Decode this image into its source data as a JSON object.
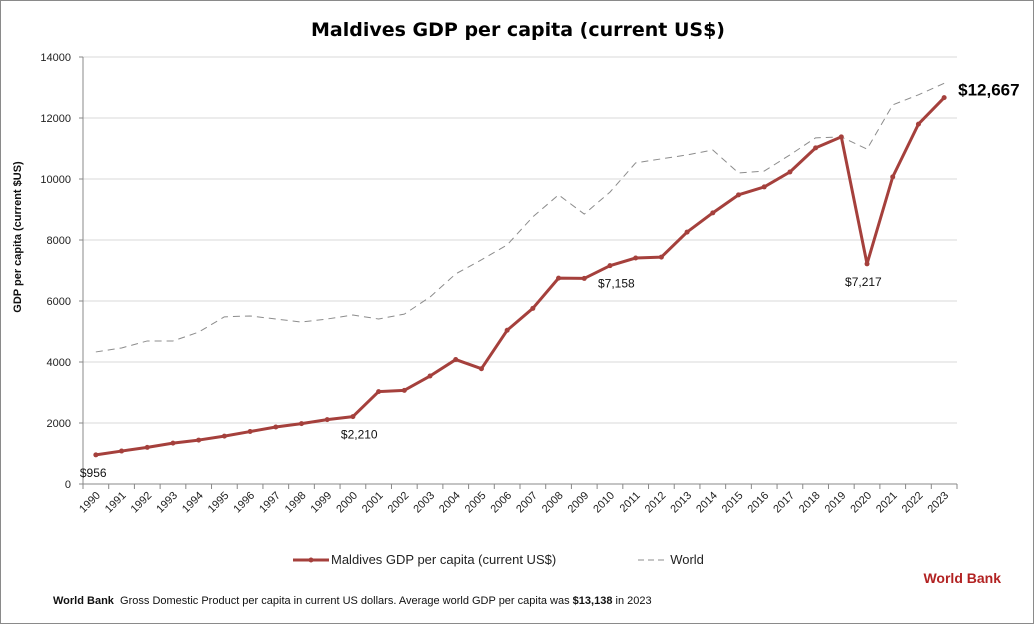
{
  "chart_data": {
    "type": "line",
    "title": "Maldives GDP per capita (current US$)",
    "xlabel": "",
    "ylabel": "GDP per capita (current $US)",
    "ylim": [
      0,
      14000
    ],
    "yticks": [
      "0",
      "2000",
      "4000",
      "6000",
      "8000",
      "10000",
      "12000",
      "14000"
    ],
    "grid": true,
    "legend_position": "bottom",
    "categories": [
      "1990",
      "1991",
      "1992",
      "1993",
      "1994",
      "1995",
      "1996",
      "1997",
      "1998",
      "1999",
      "2000",
      "2001",
      "2002",
      "2003",
      "2004",
      "2005",
      "2006",
      "2007",
      "2008",
      "2009",
      "2010",
      "2011",
      "2012",
      "2013",
      "2014",
      "2015",
      "2016",
      "2017",
      "2018",
      "2019",
      "2020",
      "2021",
      "2022",
      "2023"
    ],
    "series": [
      {
        "name": "Maldives GDP per capita (current US$)",
        "color": "#a5403c",
        "style": "solid-markers",
        "values": [
          956,
          1080,
          1200,
          1340,
          1440,
          1570,
          1720,
          1870,
          1980,
          2110,
          2210,
          3030,
          3070,
          3540,
          4080,
          3780,
          5040,
          5760,
          6750,
          6740,
          7158,
          7410,
          7440,
          8260,
          8890,
          9480,
          9740,
          10230,
          11020,
          11380,
          7217,
          10070,
          11800,
          12667
        ]
      },
      {
        "name": "World",
        "color": "#8c8c8c",
        "style": "dashed",
        "values": [
          4330,
          4460,
          4690,
          4690,
          4980,
          5480,
          5510,
          5410,
          5310,
          5410,
          5540,
          5410,
          5570,
          6130,
          6890,
          7350,
          7840,
          8760,
          9480,
          8850,
          9570,
          10530,
          10660,
          10790,
          10950,
          10200,
          10260,
          10790,
          11350,
          11380,
          10980,
          12430,
          12760,
          13138
        ]
      }
    ],
    "annotations": [
      {
        "category": "1990",
        "text": "$956"
      },
      {
        "category": "2000",
        "text": "$2,210"
      },
      {
        "category": "2010",
        "text": "$7,158"
      },
      {
        "category": "2020",
        "text": "$7,217"
      },
      {
        "category": "2023",
        "text": "$12,667"
      }
    ]
  },
  "source_label": "World Bank",
  "footer": {
    "source": "World Bank",
    "text": "Gross Domestic Product per capita in current US dollars.  Average world GDP per capita was ",
    "highlight": "$13,138",
    "suffix": " in 2023"
  }
}
